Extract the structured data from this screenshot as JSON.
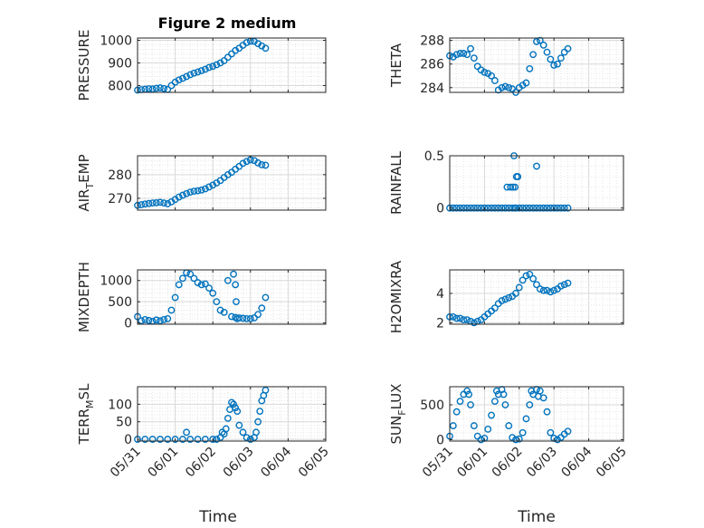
{
  "figure_title": "Figure 2 medium",
  "colors": {
    "marker": "#0072BD",
    "axis": "#262626",
    "grid": "#d9d9d9"
  },
  "chart_data": [
    {
      "type": "scatter",
      "ylabel": "PRESSURE",
      "ylabel_parts": [
        {
          "t": "PRESSURE",
          "sub": false
        }
      ],
      "title": "Figure 2 medium",
      "xlim": [
        "05/31",
        "06/05"
      ],
      "xticks": [
        "05/31",
        "06/01",
        "06/02",
        "06/03",
        "06/04",
        "06/05"
      ],
      "xtick_labels_visible": false,
      "ylim": [
        770,
        1010
      ],
      "yticks": [
        800,
        900,
        1000
      ],
      "grid": true,
      "x": [
        0.0,
        0.1,
        0.2,
        0.3,
        0.4,
        0.5,
        0.6,
        0.7,
        0.8,
        0.9,
        1.0,
        1.1,
        1.2,
        1.3,
        1.4,
        1.5,
        1.6,
        1.7,
        1.8,
        1.9,
        2.0,
        2.1,
        2.2,
        2.3,
        2.4,
        2.5,
        2.6,
        2.7,
        2.8,
        2.9,
        3.0,
        3.1,
        3.2,
        3.3,
        3.4
      ],
      "y": [
        780,
        782,
        784,
        786,
        785,
        788,
        790,
        787,
        783,
        800,
        815,
        825,
        832,
        840,
        848,
        855,
        860,
        866,
        872,
        880,
        885,
        892,
        900,
        910,
        925,
        940,
        955,
        965,
        978,
        990,
        996,
        995,
        985,
        975,
        965
      ]
    },
    {
      "type": "scatter",
      "ylabel": "THETA",
      "ylabel_parts": [
        {
          "t": "THETA",
          "sub": false
        }
      ],
      "xlim": [
        "05/31",
        "06/05"
      ],
      "xticks": [
        "05/31",
        "06/01",
        "06/02",
        "06/03",
        "06/04",
        "06/05"
      ],
      "xtick_labels_visible": false,
      "ylim": [
        283.6,
        288.2
      ],
      "yticks": [
        284,
        286,
        288
      ],
      "grid": true,
      "x": [
        0.0,
        0.1,
        0.2,
        0.3,
        0.4,
        0.5,
        0.6,
        0.7,
        0.8,
        0.9,
        1.0,
        1.1,
        1.2,
        1.3,
        1.4,
        1.5,
        1.6,
        1.7,
        1.8,
        1.9,
        2.0,
        2.1,
        2.2,
        2.3,
        2.4,
        2.5,
        2.6,
        2.7,
        2.8,
        2.9,
        3.0,
        3.1,
        3.2,
        3.3,
        3.4
      ],
      "y": [
        286.7,
        286.6,
        286.8,
        286.9,
        286.9,
        286.8,
        287.3,
        286.5,
        285.8,
        285.5,
        285.3,
        285.2,
        285.0,
        284.6,
        283.8,
        284.0,
        284.1,
        284.0,
        283.9,
        283.6,
        284.0,
        284.2,
        284.4,
        285.6,
        286.8,
        287.9,
        288.0,
        287.6,
        287.0,
        286.4,
        285.9,
        286.0,
        286.5,
        287.0,
        287.3
      ]
    },
    {
      "type": "scatter",
      "ylabel": "AIR_TEMP",
      "ylabel_parts": [
        {
          "t": "AIR",
          "sub": false
        },
        {
          "t": "T",
          "sub": true
        },
        {
          "t": "EMP",
          "sub": false
        }
      ],
      "xlim": [
        "05/31",
        "06/05"
      ],
      "xticks": [
        "05/31",
        "06/01",
        "06/02",
        "06/03",
        "06/04",
        "06/05"
      ],
      "xtick_labels_visible": false,
      "ylim": [
        265,
        288
      ],
      "yticks": [
        270,
        280
      ],
      "grid": true,
      "x": [
        0.0,
        0.1,
        0.2,
        0.3,
        0.4,
        0.5,
        0.6,
        0.7,
        0.8,
        0.9,
        1.0,
        1.1,
        1.2,
        1.3,
        1.4,
        1.5,
        1.6,
        1.7,
        1.8,
        1.9,
        2.0,
        2.1,
        2.2,
        2.3,
        2.4,
        2.5,
        2.6,
        2.7,
        2.8,
        2.9,
        3.0,
        3.1,
        3.2,
        3.3,
        3.4
      ],
      "y": [
        267.0,
        267.3,
        267.6,
        267.8,
        268.0,
        268.1,
        268.3,
        268.0,
        267.7,
        268.5,
        269.5,
        270.5,
        271.3,
        272.0,
        272.6,
        273.0,
        273.2,
        273.5,
        274.0,
        274.8,
        275.6,
        276.5,
        277.5,
        278.8,
        280.0,
        281.0,
        282.3,
        283.5,
        284.8,
        285.6,
        286.3,
        286.0,
        285.0,
        284.2,
        284.0
      ]
    },
    {
      "type": "scatter",
      "ylabel": "RAINFALL",
      "ylabel_parts": [
        {
          "t": "RAINFALL",
          "sub": false
        }
      ],
      "xlim": [
        "05/31",
        "06/05"
      ],
      "xticks": [
        "05/31",
        "06/01",
        "06/02",
        "06/03",
        "06/04",
        "06/05"
      ],
      "xtick_labels_visible": false,
      "ylim": [
        -0.02,
        0.5
      ],
      "yticks": [
        0,
        0.5
      ],
      "grid": true,
      "x": [
        0.0,
        0.1,
        0.2,
        0.3,
        0.4,
        0.5,
        0.6,
        0.7,
        0.8,
        0.9,
        1.0,
        1.1,
        1.2,
        1.3,
        1.4,
        1.5,
        1.6,
        1.7,
        1.8,
        1.9,
        2.0,
        2.1,
        2.2,
        2.3,
        2.4,
        2.5,
        2.6,
        2.7,
        2.8,
        2.9,
        3.0,
        3.1,
        3.2,
        3.3,
        3.4,
        1.65,
        1.75,
        1.82,
        1.88,
        1.92,
        1.96,
        1.85,
        1.88,
        2.5
      ],
      "y": [
        0,
        0,
        0,
        0,
        0,
        0,
        0,
        0,
        0,
        0,
        0,
        0,
        0,
        0,
        0,
        0,
        0,
        0,
        0,
        0,
        0,
        0,
        0,
        0,
        0,
        0,
        0,
        0,
        0,
        0,
        0,
        0,
        0,
        0,
        0,
        0.2,
        0.2,
        0.2,
        0.2,
        0.3,
        0.3,
        0.5,
        0.0,
        0.4
      ]
    },
    {
      "type": "scatter",
      "ylabel": "MIXDEPTH",
      "ylabel_parts": [
        {
          "t": "MIXDEPTH",
          "sub": false
        }
      ],
      "xlim": [
        "05/31",
        "06/05"
      ],
      "xticks": [
        "05/31",
        "06/01",
        "06/02",
        "06/03",
        "06/04",
        "06/05"
      ],
      "xtick_labels_visible": false,
      "ylim": [
        -30,
        1250
      ],
      "yticks": [
        0,
        500,
        1000
      ],
      "grid": true,
      "x": [
        0.0,
        0.1,
        0.2,
        0.3,
        0.4,
        0.5,
        0.6,
        0.7,
        0.8,
        0.9,
        1.0,
        1.1,
        1.2,
        1.3,
        1.4,
        1.5,
        1.6,
        1.7,
        1.8,
        1.9,
        2.0,
        2.1,
        2.2,
        2.3,
        2.4,
        2.5,
        2.6,
        2.7,
        2.8,
        2.9,
        3.0,
        3.1,
        3.2,
        3.3,
        3.4,
        2.55,
        2.6,
        2.62,
        2.65
      ],
      "y": [
        150,
        50,
        80,
        60,
        40,
        70,
        50,
        80,
        100,
        300,
        600,
        900,
        1050,
        1180,
        1150,
        1050,
        950,
        900,
        920,
        820,
        700,
        500,
        300,
        250,
        1000,
        150,
        130,
        120,
        110,
        100,
        100,
        120,
        200,
        350,
        600,
        1150,
        900,
        500,
        100
      ]
    },
    {
      "type": "scatter",
      "ylabel": "H2OMIXRA",
      "ylabel_parts": [
        {
          "t": "H2OMIXRA",
          "sub": false
        }
      ],
      "xlim": [
        "05/31",
        "06/05"
      ],
      "xticks": [
        "05/31",
        "06/01",
        "06/02",
        "06/03",
        "06/04",
        "06/05"
      ],
      "xtick_labels_visible": false,
      "ylim": [
        1.9,
        5.6
      ],
      "yticks": [
        2,
        4
      ],
      "grid": true,
      "x": [
        0.0,
        0.1,
        0.2,
        0.3,
        0.4,
        0.5,
        0.6,
        0.7,
        0.8,
        0.9,
        1.0,
        1.1,
        1.2,
        1.3,
        1.4,
        1.5,
        1.6,
        1.7,
        1.8,
        1.9,
        2.0,
        2.1,
        2.2,
        2.3,
        2.4,
        2.5,
        2.6,
        2.7,
        2.8,
        2.9,
        3.0,
        3.1,
        3.2,
        3.3,
        3.4
      ],
      "y": [
        2.4,
        2.4,
        2.3,
        2.3,
        2.2,
        2.2,
        2.1,
        2.0,
        2.1,
        2.2,
        2.4,
        2.6,
        2.8,
        3.0,
        3.3,
        3.5,
        3.6,
        3.7,
        3.8,
        4.0,
        4.4,
        4.9,
        5.2,
        5.3,
        5.0,
        4.6,
        4.3,
        4.2,
        4.2,
        4.1,
        4.2,
        4.3,
        4.5,
        4.6,
        4.7
      ]
    },
    {
      "type": "scatter",
      "ylabel": "TERR_MSL",
      "ylabel_parts": [
        {
          "t": "TERR",
          "sub": false
        },
        {
          "t": "M",
          "sub": true
        },
        {
          "t": "SL",
          "sub": false
        }
      ],
      "xlim": [
        "05/31",
        "06/05"
      ],
      "xticks": [
        "05/31",
        "06/01",
        "06/02",
        "06/03",
        "06/04",
        "06/05"
      ],
      "xtick_labels_visible": true,
      "xlabel": "Time",
      "ylim": [
        -5,
        150
      ],
      "yticks": [
        0,
        50,
        100
      ],
      "grid": true,
      "x": [
        0.0,
        0.2,
        0.4,
        0.6,
        0.8,
        1.0,
        1.2,
        1.4,
        1.6,
        1.8,
        2.0,
        2.1,
        2.2,
        2.3,
        2.35,
        2.4,
        2.45,
        2.5,
        2.55,
        2.6,
        2.65,
        2.7,
        2.8,
        2.9,
        3.0,
        3.1,
        3.15,
        3.2,
        3.25,
        3.3,
        3.35,
        3.4,
        1.3,
        2.25
      ],
      "y": [
        0,
        0,
        0,
        0,
        0,
        0,
        0,
        0,
        0,
        0,
        0,
        0,
        5,
        15,
        30,
        60,
        85,
        105,
        100,
        90,
        80,
        40,
        20,
        5,
        0,
        5,
        20,
        50,
        80,
        110,
        125,
        140,
        20,
        20
      ]
    },
    {
      "type": "scatter",
      "ylabel": "SUN_FLUX",
      "ylabel_parts": [
        {
          "t": "SUN",
          "sub": false
        },
        {
          "t": "F",
          "sub": true
        },
        {
          "t": "LUX",
          "sub": false
        }
      ],
      "xlim": [
        "05/31",
        "06/05"
      ],
      "xticks": [
        "05/31",
        "06/01",
        "06/02",
        "06/03",
        "06/04",
        "06/05"
      ],
      "xtick_labels_visible": true,
      "xlabel": "Time",
      "ylim": [
        -20,
        760
      ],
      "yticks": [
        0,
        500
      ],
      "grid": true,
      "x": [
        0.0,
        0.1,
        0.2,
        0.3,
        0.4,
        0.5,
        0.6,
        0.7,
        0.8,
        0.9,
        1.0,
        1.1,
        1.2,
        1.3,
        1.4,
        1.5,
        1.6,
        1.7,
        1.8,
        1.9,
        2.0,
        2.1,
        2.2,
        2.3,
        2.4,
        2.5,
        2.6,
        2.7,
        2.8,
        2.9,
        3.0,
        3.1,
        3.2,
        3.3,
        3.4,
        0.55,
        1.35,
        1.55,
        2.35,
        2.55
      ],
      "y": [
        50,
        200,
        400,
        550,
        650,
        700,
        500,
        200,
        50,
        0,
        20,
        150,
        350,
        550,
        650,
        720,
        500,
        200,
        30,
        0,
        10,
        100,
        300,
        500,
        650,
        720,
        700,
        600,
        400,
        100,
        20,
        0,
        30,
        80,
        120,
        650,
        700,
        650,
        700,
        620
      ]
    }
  ]
}
